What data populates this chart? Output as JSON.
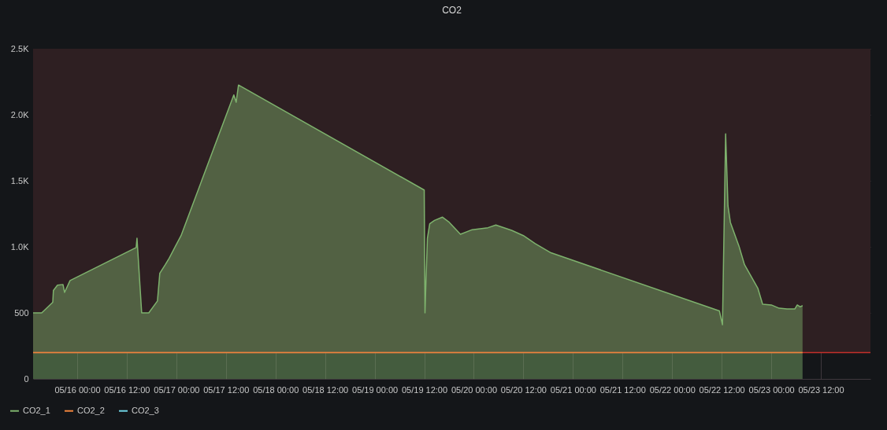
{
  "chart_data": {
    "type": "area",
    "title": "CO2",
    "xlim": [
      "--05-15T13:20",
      "--05-24T00:00"
    ],
    "ylim": [
      0,
      2500
    ],
    "xticks": [
      {
        "value": "--05-16T00:00",
        "label": "05/16 00:00"
      },
      {
        "value": "--05-16T12:00",
        "label": "05/16 12:00"
      },
      {
        "value": "--05-17T00:00",
        "label": "05/17 00:00"
      },
      {
        "value": "--05-17T12:00",
        "label": "05/17 12:00"
      },
      {
        "value": "--05-18T00:00",
        "label": "05/18 00:00"
      },
      {
        "value": "--05-18T12:00",
        "label": "05/18 12:00"
      },
      {
        "value": "--05-19T00:00",
        "label": "05/19 00:00"
      },
      {
        "value": "--05-19T12:00",
        "label": "05/19 12:00"
      },
      {
        "value": "--05-20T00:00",
        "label": "05/20 00:00"
      },
      {
        "value": "--05-20T12:00",
        "label": "05/20 12:00"
      },
      {
        "value": "--05-21T00:00",
        "label": "05/21 00:00"
      },
      {
        "value": "--05-21T12:00",
        "label": "05/21 12:00"
      },
      {
        "value": "--05-22T00:00",
        "label": "05/22 00:00"
      },
      {
        "value": "--05-22T12:00",
        "label": "05/22 12:00"
      },
      {
        "value": "--05-23T00:00",
        "label": "05/23 00:00"
      },
      {
        "value": "--05-23T12:00",
        "label": "05/23 12:00"
      }
    ],
    "yticks": [
      0,
      500,
      {
        "value": 1000,
        "label": "1.0K"
      },
      {
        "value": 1500,
        "label": "1.5K"
      },
      {
        "value": 2000,
        "label": "2.0K"
      },
      {
        "value": 2500,
        "label": "2.5K"
      }
    ],
    "grid": true,
    "legend": "bottom left",
    "bands": [
      {
        "axis": "y",
        "from": 200,
        "to": 2500,
        "color": "#2e1f22"
      }
    ],
    "ref_lines": [
      {
        "axis": "y",
        "value": 200,
        "color": "#c4302b"
      }
    ],
    "series": [
      {
        "name": "CO2_1",
        "type": "area",
        "color": "#7eb26d",
        "x": [
          "--05-15T13:20",
          "--05-15T15:25",
          "--05-15T18:06",
          "--05-15T18:15",
          "--05-15T19:14",
          "--05-15T20:34",
          "--05-15T20:57",
          "--05-15T22:17",
          "--05-16T14:17",
          "--05-16T14:29",
          "--05-16T15:37",
          "--05-16T17:20",
          "--05-16T19:26",
          "--05-16T20:00",
          "--05-16T21:20",
          "--05-16T22:17",
          "--05-16T23:37",
          "--05-17T01:09",
          "--05-17T13:55",
          "--05-17T14:29",
          "--05-17T15:03",
          "--05-19T12:00",
          "--05-19T12:11",
          "--05-19T12:46",
          "--05-19T13:20",
          "--05-19T14:29",
          "--05-19T16:23",
          "--05-19T17:54",
          "--05-19T20:46",
          "--05-19T23:37",
          "--05-20T03:26",
          "--05-20T05:20",
          "--05-20T09:09",
          "--05-20T12:00",
          "--05-20T14:51",
          "--05-20T18:40",
          "--05-22T11:26",
          "--05-22T12:11",
          "--05-22T12:57",
          "--05-22T13:31",
          "--05-22T14:06",
          "--05-22T16:11",
          "--05-22T17:31",
          "--05-22T20:46",
          "--05-22T21:54",
          "--05-23T00:00",
          "--05-23T01:54",
          "--05-23T03:49",
          "--05-23T05:43",
          "--05-23T06:17",
          "--05-23T07:00",
          "--05-23T07:34"
        ],
        "values": [
          500,
          500,
          580,
          670,
          710,
          715,
          655,
          745,
          995,
          1065,
          500,
          500,
          590,
          800,
          865,
          915,
          995,
          1085,
          2150,
          2095,
          2225,
          1430,
          500,
          1065,
          1175,
          1200,
          1225,
          1190,
          1095,
          1130,
          1145,
          1165,
          1125,
          1085,
          1025,
          955,
          515,
          410,
          1855,
          1310,
          1185,
          1005,
          865,
          685,
          565,
          560,
          535,
          530,
          530,
          560,
          545,
          555
        ]
      },
      {
        "name": "CO2_2",
        "type": "line",
        "color": "#ef843c",
        "x": [
          "--05-15T13:20",
          "--05-23T07:34"
        ],
        "values": [
          200,
          200
        ]
      },
      {
        "name": "CO2_3",
        "type": "line",
        "color": "#6ed0e0"
      }
    ]
  }
}
